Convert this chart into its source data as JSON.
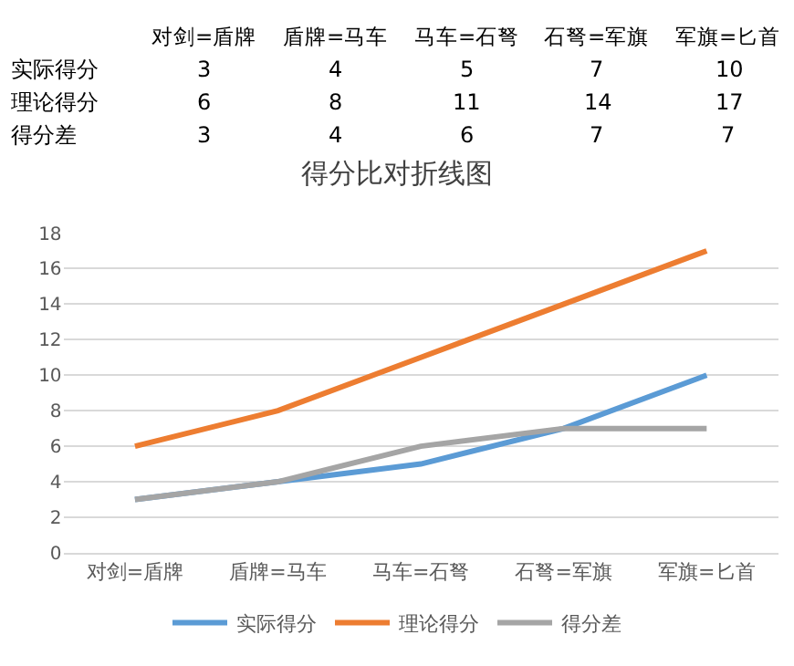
{
  "chart_data": {
    "type": "line",
    "title": "得分比对折线图",
    "categories": [
      "对剑=盾牌",
      "盾牌=马车",
      "马车=石弩",
      "石弩=军旗",
      "军旗=匕首"
    ],
    "series": [
      {
        "name": "实际得分",
        "color": "#5b9bd5",
        "values": [
          3,
          4,
          5,
          7,
          10
        ]
      },
      {
        "name": "理论得分",
        "color": "#ed7d31",
        "values": [
          6,
          8,
          11,
          14,
          17
        ]
      },
      {
        "name": "得分差",
        "color": "#a5a5a5",
        "values": [
          3,
          4,
          6,
          7,
          7
        ]
      }
    ],
    "ylim": [
      0,
      18
    ],
    "yticks": [
      0,
      2,
      4,
      6,
      8,
      10,
      12,
      14,
      16,
      18
    ],
    "grid": "y",
    "legend": "bottom",
    "data_labels": true,
    "marker": "none",
    "line_style": "solid"
  }
}
